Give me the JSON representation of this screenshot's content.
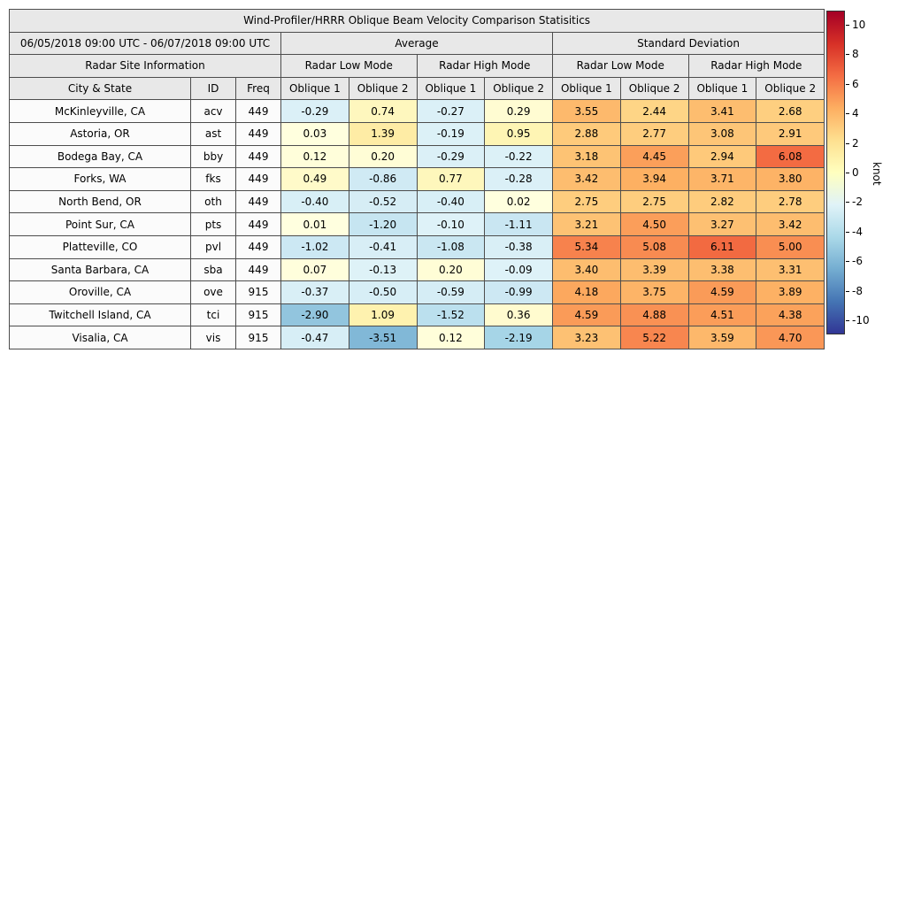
{
  "title": "Wind-Profiler/HRRR Oblique Beam Velocity Comparison Statisitics",
  "date_range": "06/05/2018 09:00 UTC - 06/07/2018 09:00 UTC",
  "groups": {
    "average": "Average",
    "std": "Standard Deviation"
  },
  "subgroups": {
    "site_info": "Radar Site Information",
    "low": "Radar Low Mode",
    "high": "Radar High Mode"
  },
  "columns": {
    "city": "City & State",
    "id": "ID",
    "freq": "Freq",
    "oblique1": "Oblique 1",
    "oblique2": "Oblique 2"
  },
  "colorbar": {
    "label": "knot",
    "min": -10,
    "max": 10,
    "ticks": [
      10,
      8,
      6,
      4,
      2,
      0,
      -2,
      -4,
      -6,
      -8,
      -10
    ],
    "gradient": [
      "#a50026",
      "#d73027",
      "#f46d43",
      "#fdae61",
      "#fee090",
      "#ffffbf",
      "#e0f3f8",
      "#abd9e9",
      "#74add1",
      "#4575b4",
      "#313695"
    ]
  },
  "colormap": {
    "stops": [
      {
        "v": -10,
        "c": "#313695"
      },
      {
        "v": -6,
        "c": "#4575b4"
      },
      {
        "v": -4,
        "c": "#74add1"
      },
      {
        "v": -2,
        "c": "#abd9e9"
      },
      {
        "v": -1,
        "c": "#cde8f3"
      },
      {
        "v": -0.001,
        "c": "#e0f3f8"
      },
      {
        "v": 0,
        "c": "#ffffdf"
      },
      {
        "v": 1,
        "c": "#fef4b2"
      },
      {
        "v": 2,
        "c": "#fee090"
      },
      {
        "v": 4,
        "c": "#fdae61"
      },
      {
        "v": 6,
        "c": "#f46d43"
      },
      {
        "v": 8,
        "c": "#d73027"
      },
      {
        "v": 10,
        "c": "#a50026"
      }
    ]
  },
  "chart_data": {
    "type": "heatmap",
    "title": "Wind-Profiler/HRRR Oblique Beam Velocity Comparison Statisitics",
    "subtitle": "06/05/2018 09:00 UTC - 06/07/2018 09:00 UTC",
    "value_unit": "knot",
    "value_range": [
      -10,
      10
    ],
    "legend_position": "right",
    "value_columns": [
      "Average Radar Low Mode Oblique 1",
      "Average Radar Low Mode Oblique 2",
      "Average Radar High Mode Oblique 1",
      "Average Radar High Mode Oblique 2",
      "Standard Deviation Radar Low Mode Oblique 1",
      "Standard Deviation Radar Low Mode Oblique 2",
      "Standard Deviation Radar High Mode Oblique 1",
      "Standard Deviation Radar High Mode Oblique 2"
    ],
    "rows": [
      {
        "city": "McKinleyville, CA",
        "id": "acv",
        "freq": "449",
        "values": [
          -0.29,
          0.74,
          -0.27,
          0.29,
          3.55,
          2.44,
          3.41,
          2.68
        ]
      },
      {
        "city": "Astoria, OR",
        "id": "ast",
        "freq": "449",
        "values": [
          0.03,
          1.39,
          -0.19,
          0.95,
          2.88,
          2.77,
          3.08,
          2.91
        ]
      },
      {
        "city": "Bodega Bay, CA",
        "id": "bby",
        "freq": "449",
        "values": [
          0.12,
          0.2,
          -0.29,
          -0.22,
          3.18,
          4.45,
          2.94,
          6.08
        ]
      },
      {
        "city": "Forks, WA",
        "id": "fks",
        "freq": "449",
        "values": [
          0.49,
          -0.86,
          0.77,
          -0.28,
          3.42,
          3.94,
          3.71,
          3.8
        ]
      },
      {
        "city": "North Bend, OR",
        "id": "oth",
        "freq": "449",
        "values": [
          -0.4,
          -0.52,
          -0.4,
          0.02,
          2.75,
          2.75,
          2.82,
          2.78
        ]
      },
      {
        "city": "Point Sur, CA",
        "id": "pts",
        "freq": "449",
        "values": [
          0.01,
          -1.2,
          -0.1,
          -1.11,
          3.21,
          4.5,
          3.27,
          3.42
        ]
      },
      {
        "city": "Platteville, CO",
        "id": "pvl",
        "freq": "449",
        "values": [
          -1.02,
          -0.41,
          -1.08,
          -0.38,
          5.34,
          5.08,
          6.11,
          5.0
        ]
      },
      {
        "city": "Santa Barbara, CA",
        "id": "sba",
        "freq": "449",
        "values": [
          0.07,
          -0.13,
          0.2,
          -0.09,
          3.4,
          3.39,
          3.38,
          3.31
        ]
      },
      {
        "city": "Oroville, CA",
        "id": "ove",
        "freq": "915",
        "values": [
          -0.37,
          -0.5,
          -0.59,
          -0.99,
          4.18,
          3.75,
          4.59,
          3.89
        ]
      },
      {
        "city": "Twitchell Island, CA",
        "id": "tci",
        "freq": "915",
        "values": [
          -2.9,
          1.09,
          -1.52,
          0.36,
          4.59,
          4.88,
          4.51,
          4.38
        ]
      },
      {
        "city": "Visalia, CA",
        "id": "vis",
        "freq": "915",
        "values": [
          -0.47,
          -3.51,
          0.12,
          -2.19,
          3.23,
          5.22,
          3.59,
          4.7
        ]
      }
    ]
  }
}
